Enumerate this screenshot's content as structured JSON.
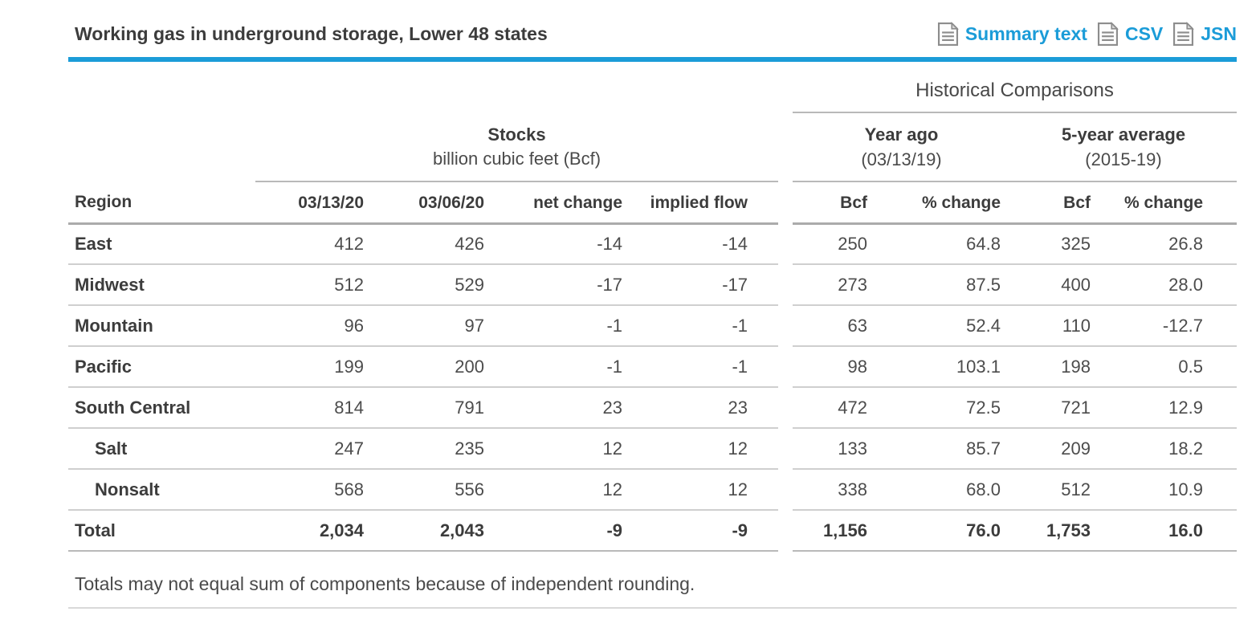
{
  "header": {
    "title": "Working gas in underground storage, Lower 48 states",
    "links": [
      {
        "label": "Summary text",
        "icon": "document-icon"
      },
      {
        "label": "CSV",
        "icon": "document-icon"
      },
      {
        "label": "JSN",
        "icon": "document-icon"
      }
    ]
  },
  "colors": {
    "accent_blue": "#1b9cd8",
    "row_separator": "#cfcfcf",
    "header_rule": "#ababab"
  },
  "table": {
    "group_headers": {
      "historical": "Historical Comparisons",
      "stocks_title": "Stocks",
      "stocks_subtitle": "billion cubic feet (Bcf)",
      "year_ago_title": "Year ago",
      "year_ago_subtitle": "(03/13/19)",
      "five_year_title": "5-year average",
      "five_year_subtitle": "(2015-19)"
    },
    "columns": [
      "Region",
      "03/13/20",
      "03/06/20",
      "net change",
      "implied flow",
      "Bcf",
      "% change",
      "Bcf",
      "% change"
    ],
    "rows": [
      {
        "region": "East",
        "indent": false,
        "total": false,
        "stocks": [
          "412",
          "426",
          "-14",
          "-14"
        ],
        "historical": [
          "250",
          "64.8",
          "325",
          "26.8"
        ]
      },
      {
        "region": "Midwest",
        "indent": false,
        "total": false,
        "stocks": [
          "512",
          "529",
          "-17",
          "-17"
        ],
        "historical": [
          "273",
          "87.5",
          "400",
          "28.0"
        ]
      },
      {
        "region": "Mountain",
        "indent": false,
        "total": false,
        "stocks": [
          "96",
          "97",
          "-1",
          "-1"
        ],
        "historical": [
          "63",
          "52.4",
          "110",
          "-12.7"
        ]
      },
      {
        "region": "Pacific",
        "indent": false,
        "total": false,
        "stocks": [
          "199",
          "200",
          "-1",
          "-1"
        ],
        "historical": [
          "98",
          "103.1",
          "198",
          "0.5"
        ]
      },
      {
        "region": "South Central",
        "indent": false,
        "total": false,
        "stocks": [
          "814",
          "791",
          "23",
          "23"
        ],
        "historical": [
          "472",
          "72.5",
          "721",
          "12.9"
        ]
      },
      {
        "region": "Salt",
        "indent": true,
        "total": false,
        "stocks": [
          "247",
          "235",
          "12",
          "12"
        ],
        "historical": [
          "133",
          "85.7",
          "209",
          "18.2"
        ]
      },
      {
        "region": "Nonsalt",
        "indent": true,
        "total": false,
        "stocks": [
          "568",
          "556",
          "12",
          "12"
        ],
        "historical": [
          "338",
          "68.0",
          "512",
          "10.9"
        ]
      },
      {
        "region": "Total",
        "indent": false,
        "total": true,
        "stocks": [
          "2,034",
          "2,043",
          "-9",
          "-9"
        ],
        "historical": [
          "1,156",
          "76.0",
          "1,753",
          "16.0"
        ]
      }
    ],
    "footnote": "Totals may not equal sum of components because of independent rounding."
  }
}
